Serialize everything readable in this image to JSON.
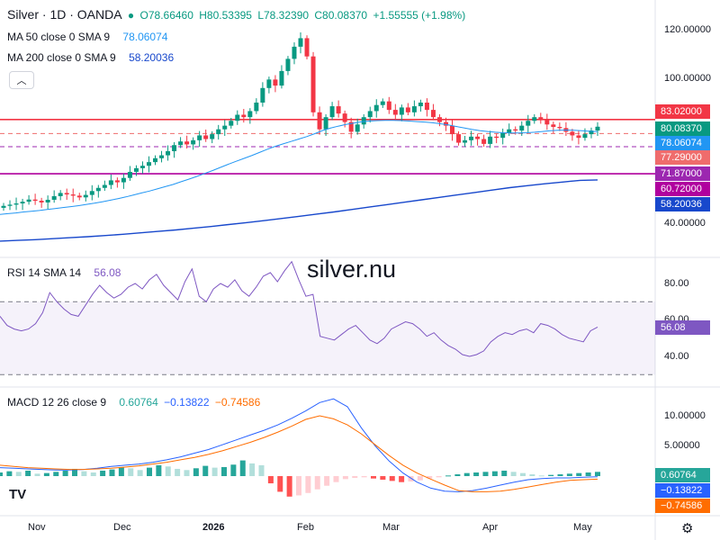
{
  "header": {
    "symbol": "Silver · 1D · OANDA",
    "open": "O78.66460",
    "high": "H80.53395",
    "low": "L78.32390",
    "close": "C80.08370",
    "change": "+1.55555 (+1.98%)"
  },
  "indicators": {
    "ma50": {
      "label": "MA 50 close 0 SMA 9",
      "value": "78.06074",
      "color": "#2196f3"
    },
    "ma200": {
      "label": "MA 200 close 0 SMA 9",
      "value": "58.20036",
      "color": "#1848cc"
    },
    "rsi": {
      "label": "RSI 14 SMA 14",
      "value": "56.08",
      "color": "#7e57c2"
    },
    "macd": {
      "label": "MACD 12 26 close 9",
      "macd": "0.60764",
      "signal": "−0.13822",
      "hist": "−0.74586"
    }
  },
  "watermark": "silver.nu",
  "tv_logo": "TV",
  "price_axis": [
    "120.00000",
    "100.00000",
    "40.00000"
  ],
  "price_tags": [
    {
      "value": "83.02000",
      "color": "#f23645"
    },
    {
      "value": "80.08370",
      "color": "#089981"
    },
    {
      "value": "78.06074",
      "color": "#2196f3"
    },
    {
      "value": "77.29000",
      "color": "#ef6c6c"
    },
    {
      "value": "71.87000",
      "color": "#9c27b0"
    },
    {
      "value": "60.72000",
      "color": "#b0009e"
    },
    {
      "value": "58.20036",
      "color": "#1848cc"
    }
  ],
  "rsi_axis": [
    "80.00",
    "60.00",
    "40.00"
  ],
  "macd_axis": [
    "10.00000",
    "5.00000"
  ],
  "macd_tags": [
    {
      "value": "0.60764",
      "color": "#26a69a"
    },
    {
      "value": "−0.13822",
      "color": "#2962ff"
    },
    {
      "value": "−0.74586",
      "color": "#ff6d00"
    }
  ],
  "time_axis": [
    "Nov",
    "Dec",
    "2026",
    "Feb",
    "Mar",
    "Apr",
    "May"
  ],
  "chart_data": {
    "type": "candlestick",
    "x_labels": [
      "Nov",
      "Dec",
      "2026",
      "Feb",
      "Mar",
      "Apr",
      "May"
    ],
    "y_ticks": [
      40,
      100,
      120
    ],
    "horizontal_levels": [
      83.02,
      77.29,
      71.87,
      60.72
    ],
    "closes": [
      47.5,
      48.0,
      48.5,
      49.2,
      50.1,
      49.6,
      48.9,
      50.0,
      51.5,
      52.8,
      52.2,
      51.7,
      51.0,
      52.0,
      53.6,
      54.9,
      56.1,
      58.0,
      57.2,
      59.0,
      61.5,
      63.0,
      64.0,
      65.5,
      67.1,
      68.3,
      70.0,
      72.5,
      74.0,
      72.8,
      74.5,
      76.5,
      75.0,
      77.0,
      79.0,
      80.5,
      82.5,
      85.0,
      84.0,
      86.5,
      90.0,
      96.0,
      99.5,
      97.0,
      103.0,
      108.0,
      113.0,
      116.5,
      109.0,
      86.0,
      79.0,
      84.0,
      88.5,
      85.5,
      82.0,
      78.0,
      81.0,
      84.0,
      86.5,
      89.0,
      90.5,
      87.0,
      85.0,
      88.0,
      86.0,
      88.5,
      90.0,
      87.0,
      84.0,
      82.0,
      80.5,
      77.0,
      73.5,
      74.5,
      76.0,
      75.0,
      73.0,
      76.0,
      75.5,
      77.5,
      79.0,
      78.5,
      80.5,
      82.5,
      84.0,
      83.0,
      81.0,
      80.0,
      79.5,
      78.0,
      76.5,
      75.5,
      77.0,
      78.5,
      80.08
    ],
    "ma50": [
      44.0,
      44.3,
      44.6,
      45.0,
      45.3,
      45.6,
      46.0,
      46.4,
      46.8,
      47.2,
      47.6,
      48.1,
      48.6,
      49.2,
      49.8,
      50.5,
      51.2,
      52.0,
      52.8,
      53.6,
      54.5,
      55.4,
      56.3,
      57.4,
      58.5,
      59.6,
      60.8,
      62.0,
      63.3,
      64.6,
      65.8,
      67.0,
      68.2,
      69.5,
      70.8,
      72.0,
      73.0,
      74.0,
      75.0,
      76.0,
      77.2,
      78.5,
      79.5,
      80.3,
      81.0,
      81.6,
      82.1,
      82.4,
      82.6,
      82.7,
      82.7,
      82.6,
      82.4,
      82.2,
      82.0,
      81.7,
      81.3,
      80.8,
      80.2,
      79.6,
      79.0,
      78.5,
      78.1,
      77.8,
      77.6,
      77.5,
      77.5,
      77.6,
      77.8,
      78.1,
      78.4,
      78.6,
      78.7,
      78.6,
      78.4,
      78.2,
      78.06
    ],
    "ma200": [
      33.0,
      33.3,
      33.6,
      34.0,
      34.4,
      34.8,
      35.3,
      35.8,
      36.4,
      37.0,
      37.6,
      38.3,
      39.0,
      39.8,
      40.6,
      41.4,
      42.3,
      43.2,
      44.1,
      45.0,
      46.0,
      47.0,
      48.0,
      49.0,
      50.0,
      51.0,
      52.0,
      53.0,
      54.0,
      55.0,
      55.8,
      56.6,
      57.3,
      58.0,
      58.20036
    ],
    "rsi": [
      62,
      57,
      55,
      54,
      55,
      58,
      64,
      75,
      70,
      66,
      63,
      62,
      68,
      74,
      79,
      75,
      72,
      74,
      78,
      80,
      77,
      82,
      85,
      79,
      75,
      71,
      81,
      88,
      73,
      70,
      77,
      80,
      78,
      82,
      76,
      73,
      78,
      84,
      86,
      81,
      87,
      92,
      82,
      73,
      74,
      51,
      50,
      49,
      52,
      55,
      57,
      53,
      49,
      47,
      50,
      55,
      57,
      59,
      58,
      55,
      51,
      53,
      49,
      46,
      44,
      41,
      40,
      41,
      43,
      48,
      51,
      53,
      52,
      54,
      55,
      53,
      58,
      57,
      55,
      52,
      50,
      49,
      48,
      54,
      56.08
    ],
    "macd_hist": [
      0.6,
      0.8,
      0.7,
      0.9,
      0.4,
      0.5,
      0.7,
      0.9,
      1.2,
      0.8,
      0.6,
      0.9,
      1.1,
      1.5,
      1.3,
      1.0,
      1.4,
      1.8,
      1.6,
      1.2,
      1.0,
      1.3,
      1.7,
      1.4,
      1.5,
      1.9,
      2.6,
      2.1,
      1.8,
      -1.2,
      -2.6,
      -3.4,
      -3.2,
      -2.8,
      -2.2,
      -1.6,
      -1.0,
      -0.5,
      -0.3,
      -0.2,
      -0.4,
      -0.6,
      -0.8,
      -1.0,
      -0.9,
      -0.7,
      -0.4,
      -0.2,
      0.1,
      0.3,
      0.5,
      0.6,
      0.7,
      0.8,
      0.9,
      0.7,
      0.5,
      0.3,
      0.1,
      0.2,
      0.3,
      0.4,
      0.5,
      0.6,
      0.7
    ]
  }
}
